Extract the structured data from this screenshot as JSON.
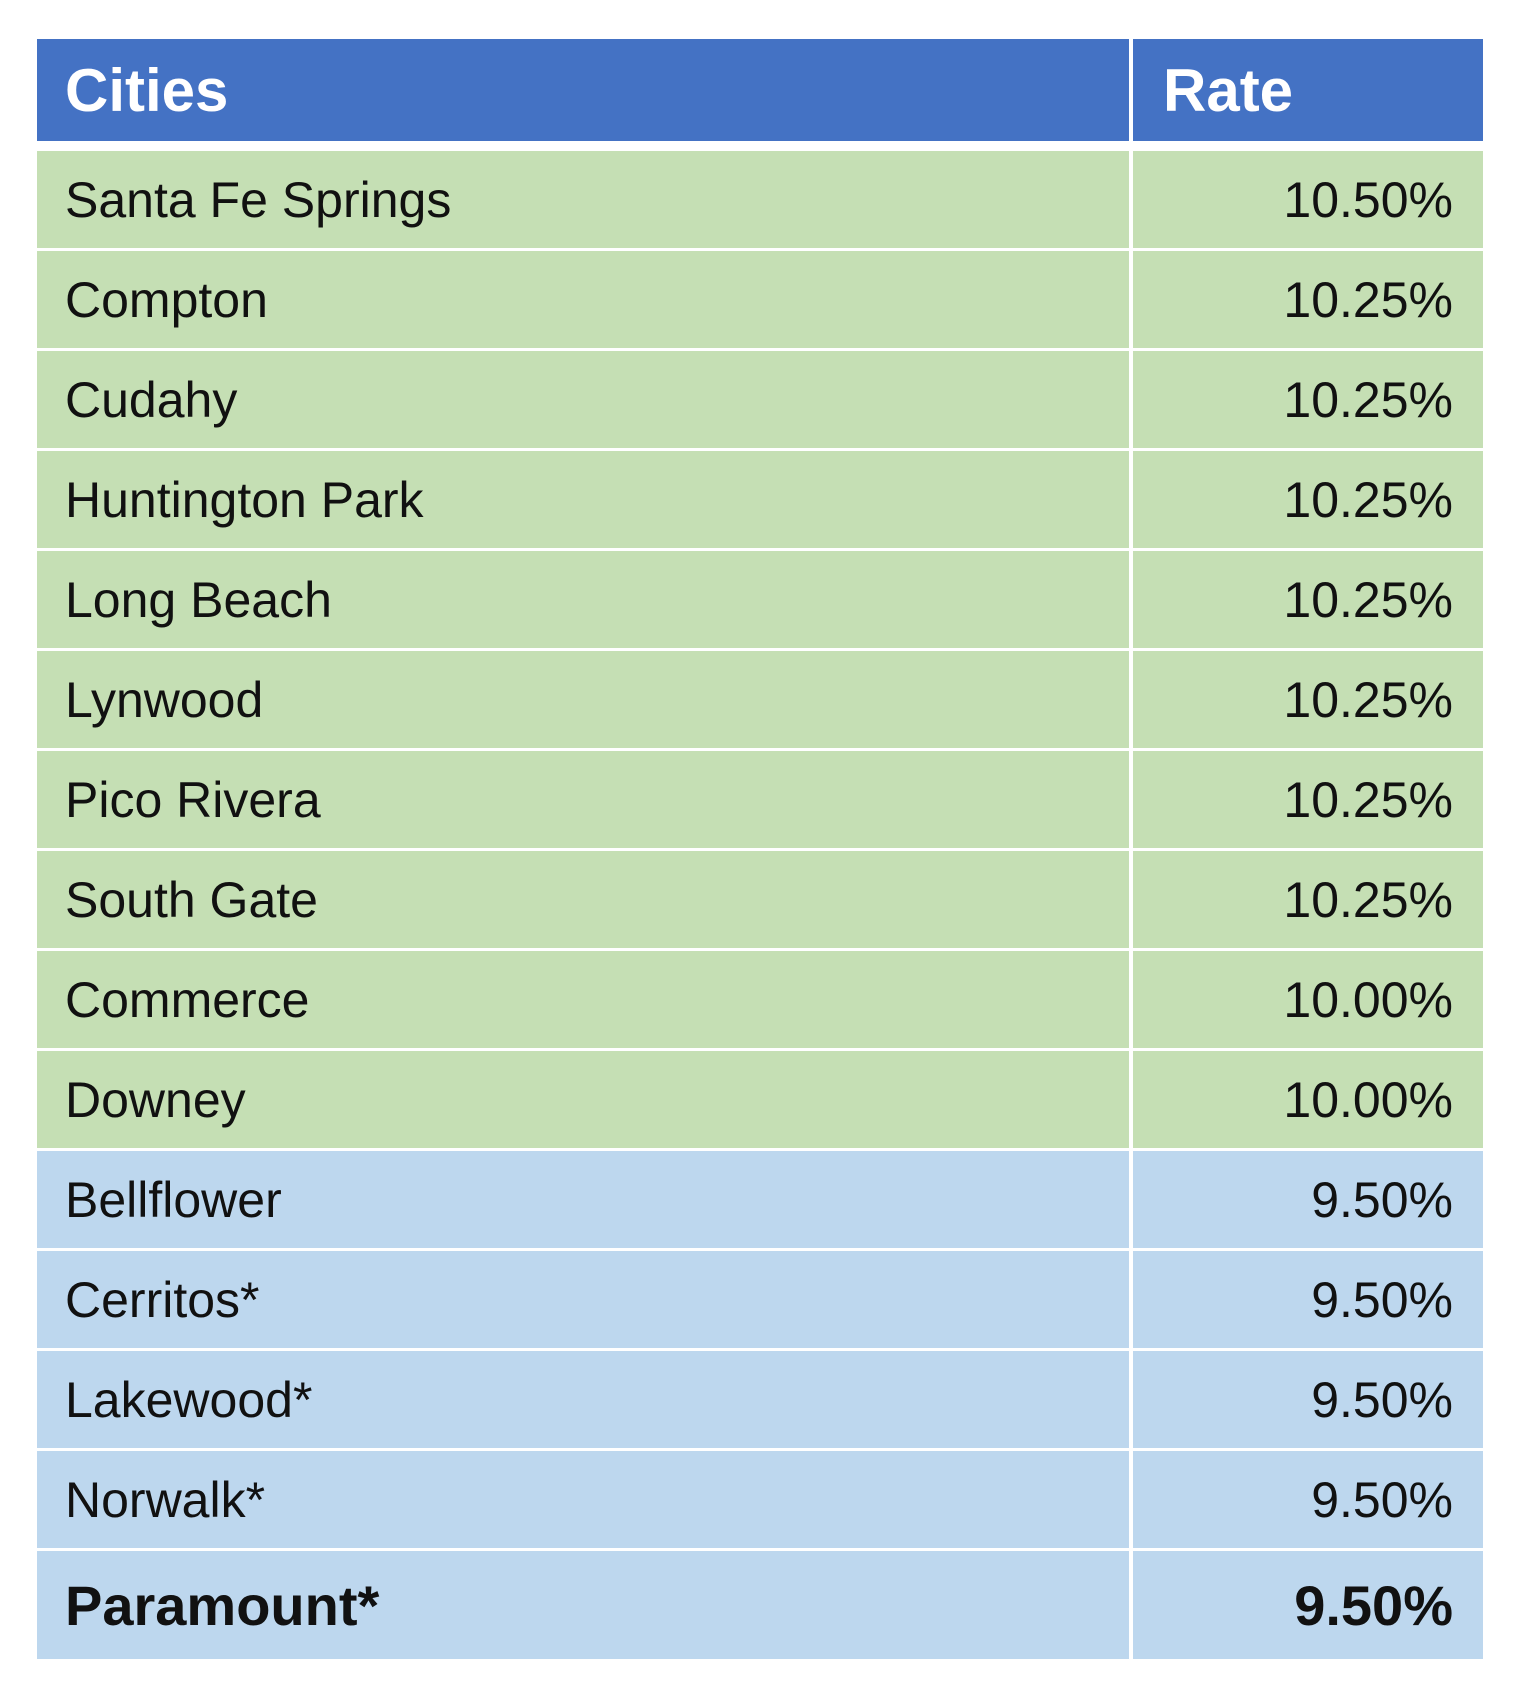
{
  "table": {
    "headers": {
      "city": "Cities",
      "rate": "Rate"
    },
    "colors": {
      "header": "#4472c4",
      "green_rows": "#c5dfb4",
      "blue_rows": "#bdd7ee"
    },
    "rows": [
      {
        "city": "Santa Fe Springs",
        "rate": "10.50%",
        "group": "green"
      },
      {
        "city": "Compton",
        "rate": "10.25%",
        "group": "green"
      },
      {
        "city": "Cudahy",
        "rate": "10.25%",
        "group": "green"
      },
      {
        "city": "Huntington Park",
        "rate": "10.25%",
        "group": "green"
      },
      {
        "city": "Long Beach",
        "rate": "10.25%",
        "group": "green"
      },
      {
        "city": "Lynwood",
        "rate": "10.25%",
        "group": "green"
      },
      {
        "city": "Pico Rivera",
        "rate": "10.25%",
        "group": "green"
      },
      {
        "city": "South Gate",
        "rate": "10.25%",
        "group": "green"
      },
      {
        "city": "Commerce",
        "rate": "10.00%",
        "group": "green"
      },
      {
        "city": "Downey",
        "rate": "10.00%",
        "group": "green"
      },
      {
        "city": "Bellflower",
        "rate": "9.50%",
        "group": "blue"
      },
      {
        "city": "Cerritos*",
        "rate": "9.50%",
        "group": "blue"
      },
      {
        "city": "Lakewood*",
        "rate": "9.50%",
        "group": "blue"
      },
      {
        "city": "Norwalk*",
        "rate": "9.50%",
        "group": "blue"
      },
      {
        "city": "Paramount*",
        "rate": "9.50%",
        "group": "blue",
        "bold": true
      }
    ]
  }
}
